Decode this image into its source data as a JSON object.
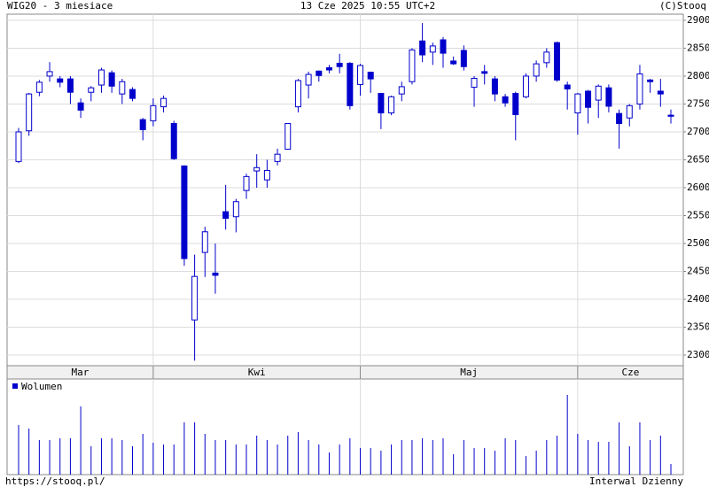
{
  "chart_data": {
    "type": "candlestick",
    "title": "WIG20 - 3 miesiace",
    "subtitle": "13 Cze 2025 10:55 UTC+2",
    "copyright": "(C)Stooq",
    "footer_left": "https://stooq.pl/",
    "footer_right": "Interwal Dzienny",
    "volume_name": "Wolumen",
    "color": "#0000cc",
    "grid": true,
    "categories": [
      "Mar",
      null,
      null,
      null,
      null,
      null,
      null,
      null,
      null,
      null,
      null,
      null,
      null,
      "Kwi",
      null,
      null,
      null,
      null,
      null,
      null,
      null,
      null,
      null,
      null,
      null,
      null,
      null,
      null,
      null,
      null,
      null,
      null,
      null,
      "Maj",
      null,
      null,
      null,
      null,
      null,
      null,
      null,
      null,
      null,
      null,
      null,
      null,
      null,
      null,
      null,
      null,
      null,
      null,
      null,
      null,
      "Cze",
      null,
      null,
      null,
      null,
      null,
      null,
      null,
      null,
      null
    ],
    "open": [
      2647,
      2702,
      2771,
      2800,
      2795,
      2795,
      2752,
      2771,
      2784,
      2806,
      2768,
      2776,
      2722,
      2720,
      2745,
      2715,
      2639,
      2363,
      2484,
      2447,
      2557,
      2548,
      2595,
      2630,
      2614,
      2647,
      2669,
      2745,
      2784,
      2809,
      2815,
      2823,
      2823,
      2785,
      2807,
      2769,
      2734,
      2768,
      2790,
      2863,
      2843,
      2865,
      2827,
      2846,
      2780,
      2808,
      2795,
      2763,
      2769,
      2763,
      2800,
      2824,
      2860,
      2784,
      2734,
      2773,
      2757,
      2779,
      2733,
      2725,
      2750,
      2793,
      2773,
      2730
    ],
    "high": [
      2707,
      2770,
      2793,
      2825,
      2800,
      2800,
      2760,
      2782,
      2815,
      2810,
      2795,
      2780,
      2725,
      2760,
      2765,
      2720,
      2640,
      2480,
      2530,
      2500,
      2605,
      2580,
      2625,
      2660,
      2650,
      2670,
      2715,
      2795,
      2808,
      2810,
      2820,
      2840,
      2825,
      2822,
      2808,
      2770,
      2765,
      2790,
      2850,
      2895,
      2860,
      2870,
      2835,
      2855,
      2800,
      2820,
      2800,
      2768,
      2772,
      2805,
      2828,
      2850,
      2862,
      2790,
      2770,
      2775,
      2785,
      2785,
      2740,
      2750,
      2820,
      2795,
      2795,
      2740
    ],
    "low": [
      2644,
      2693,
      2764,
      2790,
      2780,
      2750,
      2725,
      2755,
      2770,
      2770,
      2750,
      2755,
      2685,
      2710,
      2735,
      2650,
      2460,
      2290,
      2440,
      2410,
      2525,
      2520,
      2580,
      2600,
      2600,
      2640,
      2668,
      2735,
      2760,
      2790,
      2805,
      2805,
      2740,
      2765,
      2770,
      2705,
      2730,
      2755,
      2785,
      2825,
      2820,
      2815,
      2820,
      2810,
      2745,
      2785,
      2755,
      2745,
      2685,
      2760,
      2790,
      2815,
      2790,
      2740,
      2695,
      2715,
      2725,
      2735,
      2670,
      2710,
      2740,
      2770,
      2745,
      2715
    ],
    "close": [
      2700,
      2768,
      2789,
      2808,
      2789,
      2771,
      2739,
      2779,
      2811,
      2782,
      2790,
      2760,
      2704,
      2747,
      2760,
      2652,
      2473,
      2441,
      2521,
      2443,
      2545,
      2575,
      2620,
      2636,
      2631,
      2660,
      2715,
      2792,
      2803,
      2801,
      2811,
      2817,
      2747,
      2819,
      2795,
      2734,
      2763,
      2781,
      2847,
      2838,
      2854,
      2841,
      2822,
      2817,
      2796,
      2805,
      2768,
      2752,
      2731,
      2800,
      2822,
      2843,
      2793,
      2777,
      2768,
      2744,
      2782,
      2746,
      2715,
      2747,
      2804,
      2790,
      2768,
      2728
    ],
    "volume": [
      56,
      52,
      39,
      39,
      41,
      41,
      77,
      32,
      41,
      41,
      39,
      32,
      46,
      36,
      34,
      34,
      59,
      59,
      46,
      39,
      39,
      34,
      34,
      44,
      39,
      34,
      44,
      48,
      39,
      34,
      25,
      34,
      41,
      30,
      30,
      27,
      34,
      39,
      39,
      41,
      39,
      41,
      23,
      39,
      30,
      30,
      27,
      41,
      39,
      21,
      27,
      39,
      44,
      90,
      46,
      39,
      37,
      37,
      59,
      32,
      59,
      39,
      44,
      12
    ],
    "volume_lim": [
      0,
      108
    ],
    "ylim": [
      2281,
      2911
    ],
    "yticks": [
      2300,
      2350,
      2400,
      2450,
      2500,
      2550,
      2600,
      2650,
      2700,
      2750,
      2800,
      2850,
      2900
    ]
  }
}
